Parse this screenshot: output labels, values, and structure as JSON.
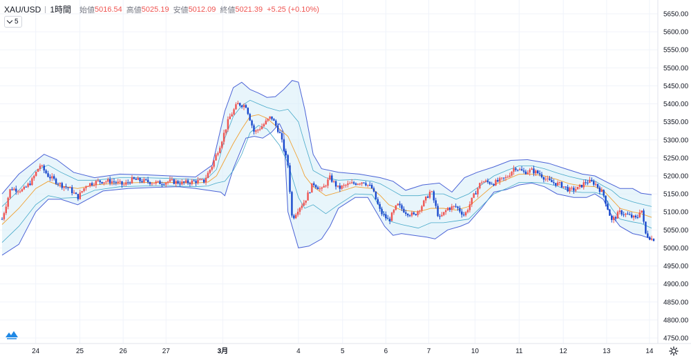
{
  "header": {
    "symbol": "XAU/USD",
    "interval": "1時間",
    "open_label": "始値",
    "open": "5016.54",
    "high_label": "高値",
    "high": "5025.19",
    "low_label": "安値",
    "low": "5012.09",
    "close_label": "終値",
    "close": "5021.39",
    "change": "+5.25 (+0.10%)"
  },
  "indicator": {
    "label": "5"
  },
  "icons": {
    "logo": "tradingview-logo-icon",
    "settings": "gear-icon",
    "indicator_toggle": "chevron-down-icon"
  },
  "colors": {
    "up": "#ef5350",
    "down": "#1848cc",
    "band": "#4a62d6",
    "basis": "#f0a030",
    "inner": "#44a8c8",
    "fill": "#d6ecf8"
  },
  "chart_data": {
    "type": "candlestick",
    "title": "XAU/USD 1時間",
    "ylim": [
      4725,
      5675
    ],
    "y_ticks": [
      4750,
      4800,
      4850,
      4900,
      4950,
      5000,
      5050,
      5100,
      5150,
      5200,
      5250,
      5300,
      5350,
      5400,
      5450,
      5500,
      5550,
      5600,
      5650
    ],
    "y_tick_labels": [
      "4750.00",
      "4800.00",
      "4850.00",
      "4900.00",
      "4950.00",
      "5000.00",
      "5050.00",
      "5100.00",
      "5150.00",
      "5200.00",
      "5250.00",
      "5300.00",
      "5350.00",
      "5400.00",
      "5450.00",
      "5500.00",
      "5550.00",
      "5600.00",
      "5650.00"
    ],
    "x_range": [
      0,
      155
    ],
    "x_ticks": [
      {
        "label": "24",
        "x": 8
      },
      {
        "label": "25",
        "x": 18.5
      },
      {
        "label": "26",
        "x": 28.8
      },
      {
        "label": "27",
        "x": 39
      },
      {
        "label": "3月",
        "x": 52.5
      },
      {
        "label": "4",
        "x": 70.5
      },
      {
        "label": "5",
        "x": 81
      },
      {
        "label": "6",
        "x": 91.3
      },
      {
        "label": "7",
        "x": 101.5
      },
      {
        "label": "10",
        "x": 112.5
      },
      {
        "label": "11",
        "x": 123
      },
      {
        "label": "12",
        "x": 133.5
      },
      {
        "label": "13",
        "x": 143.8
      },
      {
        "label": "14",
        "x": 154
      }
    ],
    "anchors": [
      [
        0,
        5080
      ],
      [
        2,
        5165
      ],
      [
        5,
        5160
      ],
      [
        7,
        5185
      ],
      [
        9,
        5230
      ],
      [
        11,
        5200
      ],
      [
        14,
        5175
      ],
      [
        16,
        5165
      ],
      [
        18,
        5140
      ],
      [
        20,
        5175
      ],
      [
        23,
        5185
      ],
      [
        26,
        5185
      ],
      [
        29,
        5175
      ],
      [
        31,
        5190
      ],
      [
        34,
        5185
      ],
      [
        37,
        5180
      ],
      [
        40,
        5185
      ],
      [
        43,
        5180
      ],
      [
        46,
        5185
      ],
      [
        48,
        5185
      ],
      [
        50,
        5230
      ],
      [
        52,
        5290
      ],
      [
        54,
        5360
      ],
      [
        56,
        5400
      ],
      [
        58,
        5395
      ],
      [
        60,
        5320
      ],
      [
        62,
        5340
      ],
      [
        64,
        5365
      ],
      [
        66,
        5320
      ],
      [
        68,
        5230
      ],
      [
        69,
        5080
      ],
      [
        70.5,
        5110
      ],
      [
        72,
        5130
      ],
      [
        74,
        5180
      ],
      [
        76,
        5160
      ],
      [
        78,
        5195
      ],
      [
        80,
        5165
      ],
      [
        82,
        5175
      ],
      [
        84,
        5180
      ],
      [
        86,
        5185
      ],
      [
        88,
        5165
      ],
      [
        90,
        5100
      ],
      [
        92,
        5075
      ],
      [
        94,
        5120
      ],
      [
        96,
        5100
      ],
      [
        98,
        5090
      ],
      [
        100,
        5120
      ],
      [
        102,
        5160
      ],
      [
        104,
        5080
      ],
      [
        106,
        5110
      ],
      [
        108,
        5115
      ],
      [
        110,
        5090
      ],
      [
        112,
        5140
      ],
      [
        114,
        5185
      ],
      [
        117,
        5180
      ],
      [
        120,
        5195
      ],
      [
        122,
        5225
      ],
      [
        124,
        5210
      ],
      [
        126,
        5215
      ],
      [
        128,
        5205
      ],
      [
        130,
        5185
      ],
      [
        133,
        5175
      ],
      [
        135,
        5160
      ],
      [
        137,
        5165
      ],
      [
        139,
        5185
      ],
      [
        141,
        5180
      ],
      [
        143,
        5150
      ],
      [
        145,
        5075
      ],
      [
        147,
        5100
      ],
      [
        149,
        5090
      ],
      [
        151,
        5080
      ],
      [
        152,
        5115
      ],
      [
        153,
        5040
      ],
      [
        154.5,
        5025
      ]
    ],
    "bollinger": {
      "period": 20,
      "upper": [
        [
          0,
          5150
        ],
        [
          4,
          5205
        ],
        [
          10,
          5260
        ],
        [
          13,
          5245
        ],
        [
          17,
          5210
        ],
        [
          22,
          5195
        ],
        [
          28,
          5205
        ],
        [
          34,
          5203
        ],
        [
          40,
          5200
        ],
        [
          46,
          5197
        ],
        [
          50,
          5230
        ],
        [
          53,
          5380
        ],
        [
          55,
          5445
        ],
        [
          57,
          5460
        ],
        [
          59,
          5440
        ],
        [
          61,
          5430
        ],
        [
          63,
          5418
        ],
        [
          65,
          5420
        ],
        [
          67,
          5440
        ],
        [
          69,
          5465
        ],
        [
          70.5,
          5460
        ],
        [
          72,
          5385
        ],
        [
          74,
          5260
        ],
        [
          76,
          5220
        ],
        [
          80,
          5210
        ],
        [
          85,
          5205
        ],
        [
          90,
          5195
        ],
        [
          93,
          5185
        ],
        [
          96,
          5160
        ],
        [
          100,
          5175
        ],
        [
          104,
          5180
        ],
        [
          107,
          5155
        ],
        [
          110,
          5195
        ],
        [
          113,
          5210
        ],
        [
          117,
          5225
        ],
        [
          121,
          5243
        ],
        [
          125,
          5245
        ],
        [
          130,
          5235
        ],
        [
          134,
          5220
        ],
        [
          138,
          5205
        ],
        [
          141,
          5200
        ],
        [
          144,
          5182
        ],
        [
          147,
          5165
        ],
        [
          150,
          5165
        ],
        [
          152,
          5152
        ],
        [
          154.5,
          5148
        ]
      ],
      "lower": [
        [
          0,
          4980
        ],
        [
          4,
          5010
        ],
        [
          8,
          5100
        ],
        [
          11,
          5135
        ],
        [
          14,
          5135
        ],
        [
          18,
          5120
        ],
        [
          24,
          5158
        ],
        [
          30,
          5165
        ],
        [
          36,
          5168
        ],
        [
          42,
          5170
        ],
        [
          46,
          5165
        ],
        [
          49,
          5160
        ],
        [
          52,
          5155
        ],
        [
          53,
          5145
        ],
        [
          55,
          5220
        ],
        [
          58,
          5305
        ],
        [
          60,
          5310
        ],
        [
          62,
          5305
        ],
        [
          64,
          5320
        ],
        [
          66,
          5345
        ],
        [
          67,
          5320
        ],
        [
          68,
          5100
        ],
        [
          70.5,
          5000
        ],
        [
          73,
          5005
        ],
        [
          76,
          5025
        ],
        [
          78,
          5060
        ],
        [
          80,
          5110
        ],
        [
          84,
          5140
        ],
        [
          87,
          5140
        ],
        [
          89,
          5100
        ],
        [
          91,
          5060
        ],
        [
          93,
          5035
        ],
        [
          95,
          5040
        ],
        [
          98,
          5035
        ],
        [
          101,
          5030
        ],
        [
          103,
          5025
        ],
        [
          106,
          5050
        ],
        [
          109,
          5060
        ],
        [
          111,
          5070
        ],
        [
          114,
          5110
        ],
        [
          117,
          5155
        ],
        [
          120,
          5162
        ],
        [
          123,
          5175
        ],
        [
          126,
          5180
        ],
        [
          129,
          5170
        ],
        [
          132,
          5150
        ],
        [
          136,
          5140
        ],
        [
          139,
          5140
        ],
        [
          141,
          5150
        ],
        [
          143,
          5135
        ],
        [
          145,
          5090
        ],
        [
          147,
          5060
        ],
        [
          150,
          5040
        ],
        [
          152,
          5035
        ],
        [
          154.5,
          5025
        ]
      ],
      "basis": [
        [
          0,
          5065
        ],
        [
          4,
          5110
        ],
        [
          8,
          5165
        ],
        [
          11,
          5185
        ],
        [
          14,
          5172
        ],
        [
          18,
          5165
        ],
        [
          22,
          5175
        ],
        [
          28,
          5180
        ],
        [
          34,
          5182
        ],
        [
          40,
          5182
        ],
        [
          46,
          5180
        ],
        [
          49,
          5183
        ],
        [
          51,
          5200
        ],
        [
          53,
          5245
        ],
        [
          55,
          5290
        ],
        [
          57,
          5330
        ],
        [
          59,
          5365
        ],
        [
          61,
          5370
        ],
        [
          63,
          5360
        ],
        [
          66,
          5330
        ],
        [
          68,
          5310
        ],
        [
          70.5,
          5245
        ],
        [
          72,
          5200
        ],
        [
          74,
          5170
        ],
        [
          77,
          5145
        ],
        [
          80,
          5155
        ],
        [
          84,
          5170
        ],
        [
          88,
          5165
        ],
        [
          90,
          5145
        ],
        [
          92,
          5120
        ],
        [
          95,
          5105
        ],
        [
          99,
          5100
        ],
        [
          102,
          5110
        ],
        [
          105,
          5110
        ],
        [
          108,
          5105
        ],
        [
          111,
          5115
        ],
        [
          114,
          5145
        ],
        [
          117,
          5175
        ],
        [
          120,
          5190
        ],
        [
          123,
          5205
        ],
        [
          126,
          5205
        ],
        [
          129,
          5200
        ],
        [
          132,
          5190
        ],
        [
          135,
          5178
        ],
        [
          138,
          5172
        ],
        [
          141,
          5170
        ],
        [
          143,
          5160
        ],
        [
          145,
          5135
        ],
        [
          147,
          5110
        ],
        [
          150,
          5100
        ],
        [
          152,
          5095
        ],
        [
          154.5,
          5085
        ]
      ],
      "inner_upper": [
        [
          0,
          5115
        ],
        [
          4,
          5160
        ],
        [
          8,
          5215
        ],
        [
          11,
          5230
        ],
        [
          14,
          5210
        ],
        [
          18,
          5188
        ],
        [
          22,
          5188
        ],
        [
          28,
          5195
        ],
        [
          34,
          5195
        ],
        [
          40,
          5193
        ],
        [
          46,
          5190
        ],
        [
          49,
          5195
        ],
        [
          51,
          5218
        ],
        [
          53,
          5305
        ],
        [
          55,
          5365
        ],
        [
          57,
          5395
        ],
        [
          59,
          5410
        ],
        [
          61,
          5400
        ],
        [
          63,
          5390
        ],
        [
          66,
          5380
        ],
        [
          68,
          5385
        ],
        [
          70.5,
          5350
        ],
        [
          72,
          5290
        ],
        [
          74,
          5215
        ],
        [
          77,
          5195
        ],
        [
          80,
          5188
        ],
        [
          84,
          5190
        ],
        [
          88,
          5185
        ],
        [
          90,
          5178
        ],
        [
          92,
          5165
        ],
        [
          95,
          5145
        ],
        [
          99,
          5145
        ],
        [
          102,
          5150
        ],
        [
          105,
          5150
        ],
        [
          108,
          5135
        ],
        [
          111,
          5150
        ],
        [
          114,
          5175
        ],
        [
          117,
          5200
        ],
        [
          120,
          5215
        ],
        [
          123,
          5228
        ],
        [
          126,
          5228
        ],
        [
          129,
          5220
        ],
        [
          132,
          5208
        ],
        [
          135,
          5198
        ],
        [
          138,
          5190
        ],
        [
          141,
          5186
        ],
        [
          143,
          5172
        ],
        [
          145,
          5160
        ],
        [
          147,
          5140
        ],
        [
          150,
          5128
        ],
        [
          152,
          5122
        ],
        [
          154.5,
          5115
        ]
      ],
      "inner_lower": [
        [
          0,
          5015
        ],
        [
          4,
          5060
        ],
        [
          8,
          5120
        ],
        [
          11,
          5145
        ],
        [
          14,
          5138
        ],
        [
          18,
          5140
        ],
        [
          22,
          5160
        ],
        [
          28,
          5170
        ],
        [
          34,
          5172
        ],
        [
          40,
          5172
        ],
        [
          46,
          5170
        ],
        [
          49,
          5172
        ],
        [
          51,
          5180
        ],
        [
          53,
          5185
        ],
        [
          55,
          5215
        ],
        [
          57,
          5260
        ],
        [
          59,
          5320
        ],
        [
          61,
          5340
        ],
        [
          63,
          5330
        ],
        [
          66,
          5285
        ],
        [
          68,
          5235
        ],
        [
          70.5,
          5140
        ],
        [
          72,
          5110
        ],
        [
          74,
          5120
        ],
        [
          77,
          5095
        ],
        [
          80,
          5120
        ],
        [
          84,
          5150
        ],
        [
          88,
          5148
        ],
        [
          90,
          5112
        ],
        [
          92,
          5075
        ],
        [
          95,
          5065
        ],
        [
          99,
          5055
        ],
        [
          102,
          5070
        ],
        [
          105,
          5070
        ],
        [
          108,
          5075
        ],
        [
          111,
          5080
        ],
        [
          114,
          5115
        ],
        [
          117,
          5150
        ],
        [
          120,
          5165
        ],
        [
          123,
          5182
        ],
        [
          126,
          5182
        ],
        [
          129,
          5180
        ],
        [
          132,
          5172
        ],
        [
          135,
          5158
        ],
        [
          138,
          5154
        ],
        [
          141,
          5154
        ],
        [
          143,
          5148
        ],
        [
          145,
          5110
        ],
        [
          147,
          5080
        ],
        [
          150,
          5072
        ],
        [
          152,
          5068
        ],
        [
          154.5,
          5055
        ]
      ]
    }
  }
}
